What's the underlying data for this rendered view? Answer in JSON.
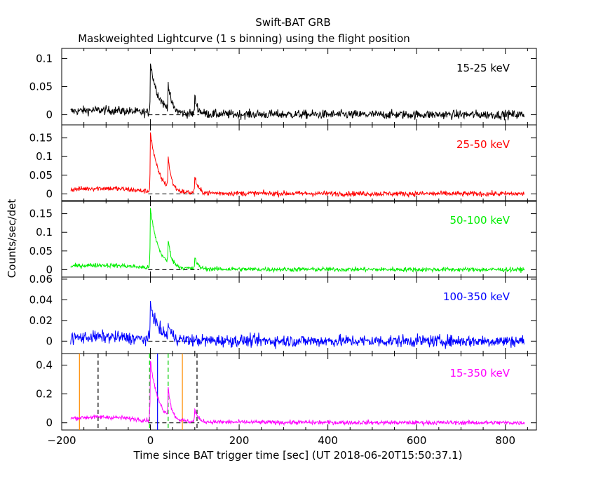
{
  "header": {
    "title": "Swift-BAT GRB",
    "subtitle": "Maskweighted Lightcurve (1 s binning) using the flight position"
  },
  "axes": {
    "xlabel": "Time since BAT trigger time [sec] (UT 2018-06-20T15:50:37.1)",
    "ylabel": "Counts/sec/det"
  },
  "colors": {
    "15-25": "#000000",
    "25-50": "#ff0000",
    "50-100": "#00ee00",
    "100-350": "#0000ff",
    "15-350": "#ff00ff",
    "orange_markers": "#ff8c00",
    "green_markers": "#00cc00",
    "black_markers": "#000000"
  },
  "chart_data": [
    {
      "type": "line",
      "band": "15-25 keV",
      "color": "#000000",
      "xlim": [
        -200,
        870
      ],
      "ylim": [
        -0.018,
        0.118
      ],
      "yticks": [
        {
          "v": 0,
          "label": "0"
        },
        {
          "v": 0.05,
          "label": "0.05"
        },
        {
          "v": 0.1,
          "label": "0.1"
        }
      ],
      "noise": 0.008,
      "pre_level": 0.008,
      "peaks": [
        {
          "t": 0,
          "a": 0.09
        },
        {
          "t": 40,
          "a": 0.045
        },
        {
          "t": 100,
          "a": 0.03
        }
      ]
    },
    {
      "type": "line",
      "band": "25-50 keV",
      "color": "#ff0000",
      "xlim": [
        -200,
        870
      ],
      "ylim": [
        -0.02,
        0.185
      ],
      "yticks": [
        {
          "v": 0,
          "label": "0"
        },
        {
          "v": 0.05,
          "label": "0.05"
        },
        {
          "v": 0.1,
          "label": "0.1"
        },
        {
          "v": 0.15,
          "label": "0.15"
        }
      ],
      "noise": 0.007,
      "pre_level": 0.015,
      "peaks": [
        {
          "t": 0,
          "a": 0.16
        },
        {
          "t": 40,
          "a": 0.08
        },
        {
          "t": 100,
          "a": 0.045
        }
      ]
    },
    {
      "type": "line",
      "band": "50-100 keV",
      "color": "#00ee00",
      "xlim": [
        -200,
        870
      ],
      "ylim": [
        -0.02,
        0.185
      ],
      "yticks": [
        {
          "v": 0,
          "label": "0"
        },
        {
          "v": 0.05,
          "label": "0.05"
        },
        {
          "v": 0.1,
          "label": "0.1"
        },
        {
          "v": 0.15,
          "label": "0.15"
        }
      ],
      "noise": 0.006,
      "pre_level": 0.012,
      "peaks": [
        {
          "t": 0,
          "a": 0.16
        },
        {
          "t": 40,
          "a": 0.06
        },
        {
          "t": 100,
          "a": 0.03
        }
      ]
    },
    {
      "type": "line",
      "band": "100-350 keV",
      "color": "#0000ff",
      "xlim": [
        -200,
        870
      ],
      "ylim": [
        -0.012,
        0.062
      ],
      "yticks": [
        {
          "v": 0,
          "label": "0"
        },
        {
          "v": 0.02,
          "label": "0.02"
        },
        {
          "v": 0.04,
          "label": "0.04"
        },
        {
          "v": 0.06,
          "label": "0.06"
        }
      ],
      "noise": 0.006,
      "pre_level": 0.004,
      "peaks": [
        {
          "t": 0,
          "a": 0.035
        },
        {
          "t": 40,
          "a": 0.012
        }
      ]
    },
    {
      "type": "line",
      "band": "15-350 keV",
      "color": "#ff00ff",
      "xlim": [
        -200,
        870
      ],
      "ylim": [
        -0.05,
        0.48
      ],
      "yticks": [
        {
          "v": 0,
          "label": "0"
        },
        {
          "v": 0.2,
          "label": "0.2"
        },
        {
          "v": 0.4,
          "label": "0.4"
        }
      ],
      "noise": 0.015,
      "pre_level": 0.04,
      "peaks": [
        {
          "t": 0,
          "a": 0.42
        },
        {
          "t": 40,
          "a": 0.2
        },
        {
          "t": 100,
          "a": 0.09
        }
      ],
      "vlines": [
        {
          "x": -160,
          "color": "#ff8c00",
          "dash": false
        },
        {
          "x": 72,
          "color": "#ff8c00",
          "dash": false
        },
        {
          "x": -118,
          "color": "#000000",
          "dash": true
        },
        {
          "x": 105,
          "color": "#000000",
          "dash": true
        },
        {
          "x": -2,
          "color": "#00cc00",
          "dash": true
        },
        {
          "x": 40,
          "color": "#00cc00",
          "dash": true
        },
        {
          "x": 16,
          "color": "#0000ff",
          "dash": false
        }
      ]
    }
  ],
  "xaxis": {
    "ticks": [
      {
        "v": -200,
        "label": "−200"
      },
      {
        "v": 0,
        "label": "0"
      },
      {
        "v": 200,
        "label": "200"
      },
      {
        "v": 400,
        "label": "400"
      },
      {
        "v": 600,
        "label": "600"
      },
      {
        "v": 800,
        "label": "800"
      }
    ],
    "data_start": -180,
    "data_end": 843
  }
}
